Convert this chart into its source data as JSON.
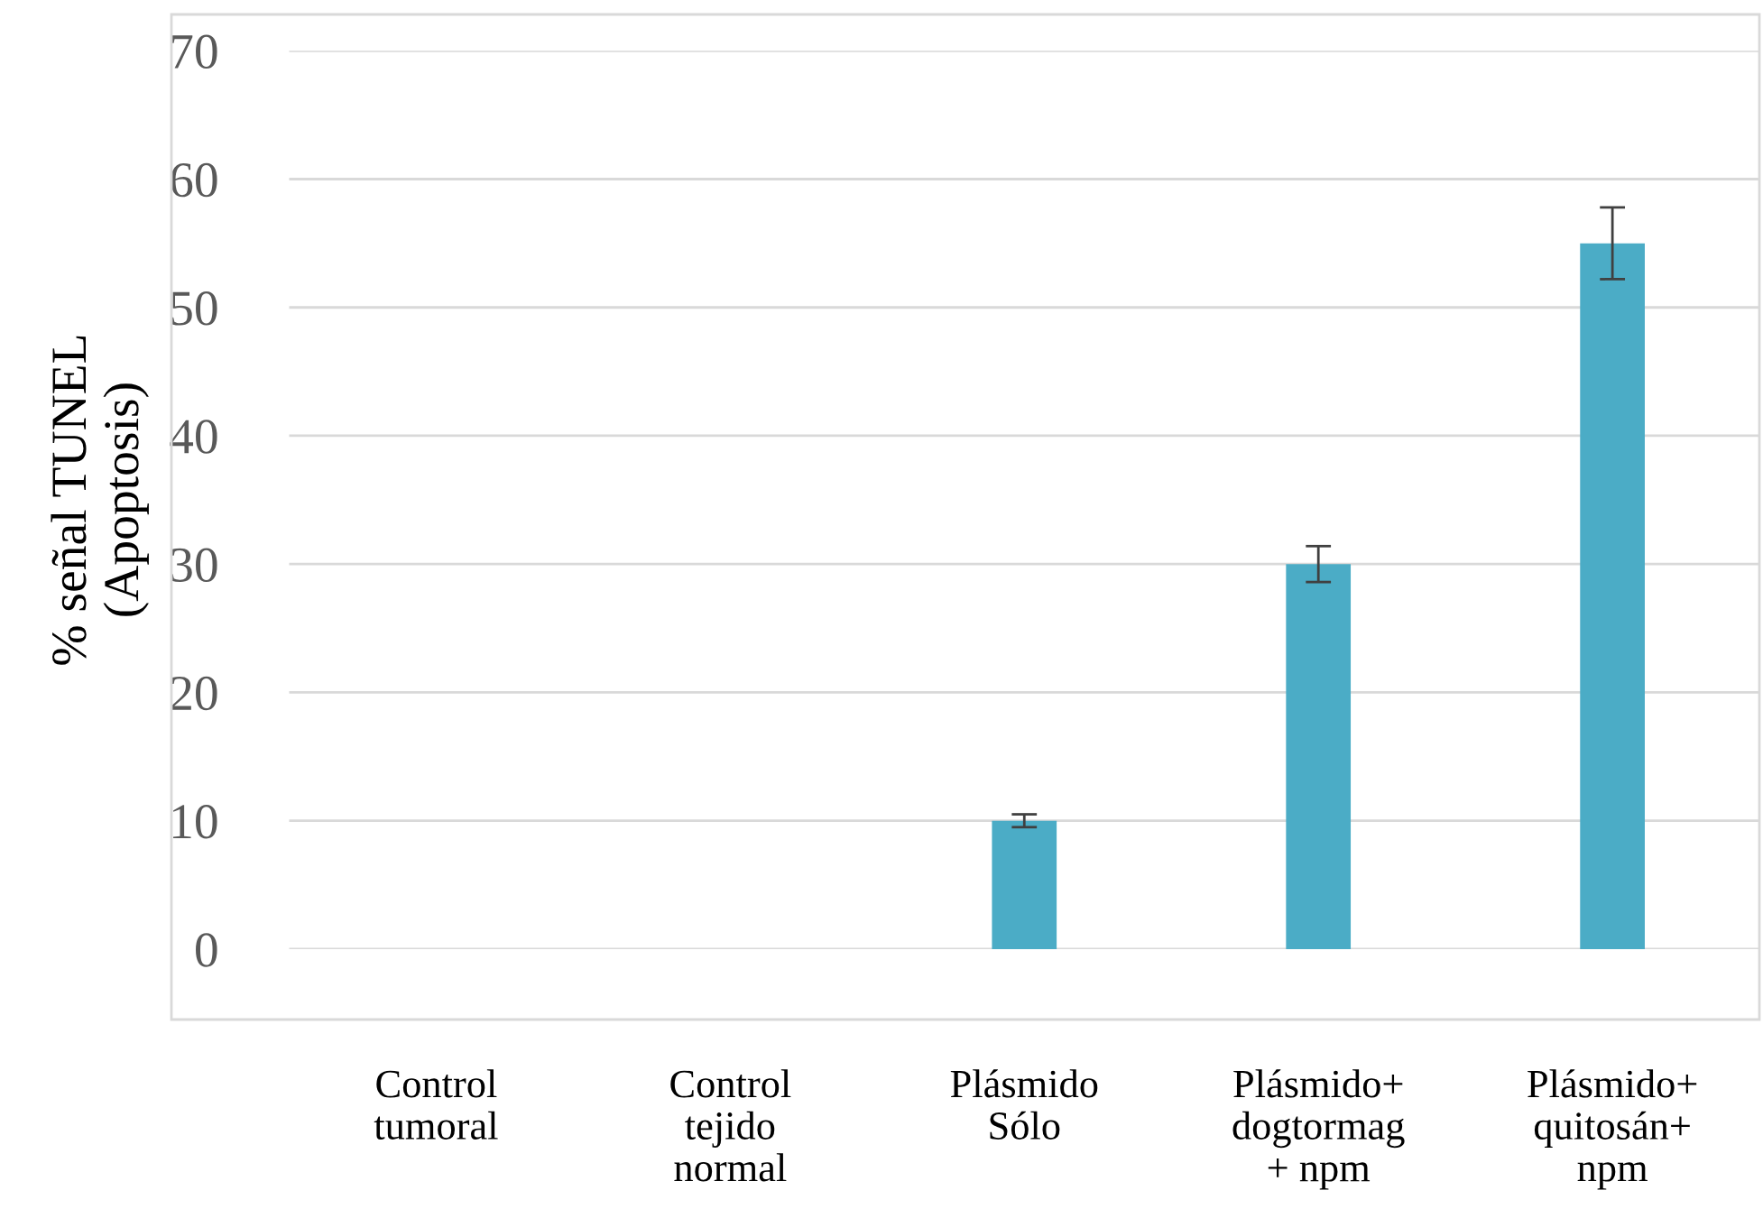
{
  "chart_data": {
    "type": "bar",
    "ylabel": "% señal TUNEL\n(Apoptosis)",
    "categories": [
      "Control\ntumoral",
      "Control\ntejido\nnormal",
      "Plásmido\nSólo",
      "Plásmido+\ndogtormag\n+ npm",
      "Plásmido+\nquitosán+\nnpm"
    ],
    "values": [
      0,
      0,
      10,
      30,
      55
    ],
    "errors": [
      null,
      null,
      0.5,
      1.4,
      2.8
    ],
    "color": "#4bacc6",
    "ylim": [
      0,
      70
    ],
    "yticks": [
      0,
      10,
      20,
      30,
      40,
      50,
      60,
      70
    ],
    "grid": "y"
  }
}
